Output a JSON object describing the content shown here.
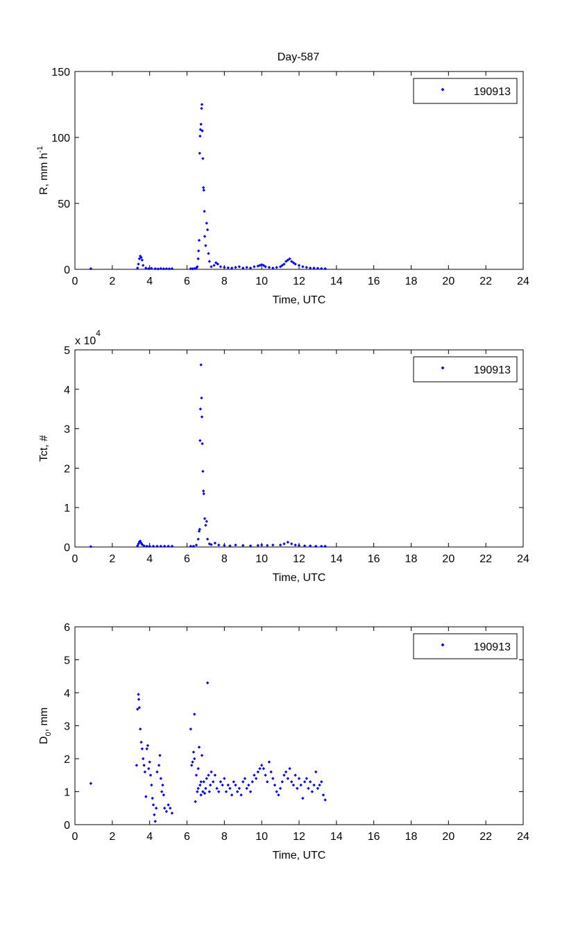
{
  "figure": {
    "title": "Day-587"
  },
  "chart_data": [
    {
      "type": "scatter",
      "xlabel": "Time, UTC",
      "ylabel": "R, mm h",
      "ylabel_sup": "-1",
      "xlim": [
        0,
        24
      ],
      "ylim": [
        0,
        150
      ],
      "xticks": [
        0,
        2,
        4,
        6,
        8,
        10,
        12,
        14,
        16,
        18,
        20,
        22,
        24
      ],
      "yticks": [
        0,
        50,
        100,
        150
      ],
      "legend": {
        "placement": "top-right",
        "label": "190913"
      },
      "grid": false,
      "color": "#0000ff",
      "series": [
        {
          "name": "190913",
          "x": [
            0.85,
            3.35,
            3.4,
            3.45,
            3.5,
            3.55,
            3.6,
            3.65,
            3.8,
            3.95,
            4.1,
            4.3,
            4.45,
            4.6,
            4.75,
            4.9,
            5.05,
            5.2,
            6.2,
            6.3,
            6.4,
            6.5,
            6.55,
            6.6,
            6.62,
            6.65,
            6.68,
            6.7,
            6.72,
            6.75,
            6.78,
            6.8,
            6.82,
            6.85,
            6.88,
            6.9,
            6.93,
            6.95,
            7.0,
            7.05,
            7.1,
            7.15,
            7.2,
            7.3,
            7.45,
            7.55,
            7.65,
            7.8,
            8.0,
            8.2,
            8.4,
            8.6,
            8.8,
            9.0,
            9.2,
            9.4,
            9.6,
            9.8,
            9.9,
            10.0,
            10.1,
            10.2,
            10.4,
            10.6,
            10.8,
            11.0,
            11.1,
            11.2,
            11.3,
            11.4,
            11.5,
            11.6,
            11.7,
            11.8,
            12.0,
            12.2,
            12.4,
            12.6,
            12.8,
            13.0,
            13.2,
            13.4
          ],
          "y": [
            0.5,
            1,
            4,
            8,
            10,
            9,
            7,
            3,
            1,
            0.5,
            0.8,
            0.5,
            0.3,
            0.6,
            0.4,
            0.5,
            0.4,
            0.5,
            0.5,
            0.4,
            0.6,
            1,
            2,
            8,
            14,
            22,
            88,
            101,
            106,
            110,
            122,
            125,
            105,
            84,
            62,
            60,
            44,
            25,
            18,
            35,
            30,
            12,
            6,
            2,
            3,
            5,
            4,
            2,
            1.5,
            1.2,
            1,
            1.5,
            2,
            1,
            1.5,
            1,
            2,
            2.5,
            3,
            3.5,
            3,
            2,
            1.5,
            1,
            1.5,
            2,
            3,
            4,
            6,
            7,
            8,
            6,
            5,
            4,
            3,
            2,
            1.5,
            1,
            1,
            0.8,
            0.6,
            0.5
          ]
        }
      ]
    },
    {
      "type": "scatter",
      "xlabel": "Time, UTC",
      "ylabel": "Tct, #",
      "y_multiplier": "x 10",
      "y_multiplier_exp": "4",
      "xlim": [
        0,
        24
      ],
      "ylim": [
        0,
        5
      ],
      "xticks": [
        0,
        2,
        4,
        6,
        8,
        10,
        12,
        14,
        16,
        18,
        20,
        22,
        24
      ],
      "yticks": [
        0,
        1,
        2,
        3,
        4,
        5
      ],
      "legend": {
        "placement": "top-right",
        "label": "190913"
      },
      "grid": false,
      "color": "#0000ff",
      "series": [
        {
          "name": "190913",
          "x": [
            0.85,
            3.35,
            3.4,
            3.45,
            3.5,
            3.55,
            3.6,
            3.7,
            3.85,
            4.0,
            4.2,
            4.4,
            4.6,
            4.8,
            5.0,
            5.2,
            6.2,
            6.35,
            6.5,
            6.6,
            6.65,
            6.68,
            6.7,
            6.72,
            6.75,
            6.78,
            6.8,
            6.82,
            6.85,
            6.88,
            6.9,
            6.95,
            7.0,
            7.05,
            7.1,
            7.2,
            7.3,
            7.5,
            7.7,
            8.0,
            8.3,
            8.6,
            9.0,
            9.4,
            9.8,
            10.0,
            10.3,
            10.6,
            11.0,
            11.2,
            11.4,
            11.6,
            11.8,
            12.0,
            12.3,
            12.6,
            12.9,
            13.2,
            13.4
          ],
          "y": [
            0.01,
            0.03,
            0.08,
            0.13,
            0.15,
            0.1,
            0.06,
            0.03,
            0.02,
            0.02,
            0.02,
            0.02,
            0.02,
            0.02,
            0.02,
            0.02,
            0.02,
            0.02,
            0.05,
            0.2,
            0.4,
            0.45,
            2.7,
            3.5,
            4.62,
            3.78,
            3.3,
            2.62,
            1.92,
            1.42,
            1.35,
            0.72,
            0.55,
            0.65,
            0.2,
            0.08,
            0.06,
            0.1,
            0.05,
            0.04,
            0.03,
            0.05,
            0.04,
            0.03,
            0.04,
            0.05,
            0.04,
            0.05,
            0.05,
            0.08,
            0.12,
            0.08,
            0.05,
            0.04,
            0.03,
            0.03,
            0.02,
            0.02,
            0.02
          ]
        }
      ]
    },
    {
      "type": "scatter",
      "xlabel": "Time, UTC",
      "ylabel": "D",
      "ylabel_sub": "0",
      "ylabel_suffix": ", mm",
      "xlim": [
        0,
        24
      ],
      "ylim": [
        0,
        6
      ],
      "xticks": [
        0,
        2,
        4,
        6,
        8,
        10,
        12,
        14,
        16,
        18,
        20,
        22,
        24
      ],
      "yticks": [
        0,
        1,
        2,
        3,
        4,
        5,
        6
      ],
      "legend": {
        "placement": "top-right",
        "label": "190913"
      },
      "grid": false,
      "color": "#0000ff",
      "series": [
        {
          "name": "190913",
          "x": [
            0.85,
            3.3,
            3.35,
            3.4,
            3.42,
            3.45,
            3.5,
            3.55,
            3.6,
            3.65,
            3.7,
            3.75,
            3.8,
            3.85,
            3.9,
            3.95,
            4.0,
            4.05,
            4.1,
            4.15,
            4.2,
            4.25,
            4.3,
            4.35,
            4.4,
            4.5,
            4.55,
            4.6,
            4.65,
            4.7,
            4.75,
            4.8,
            4.9,
            5.0,
            5.1,
            5.2,
            6.3,
            6.35,
            6.4,
            6.45,
            6.5,
            6.55,
            6.6,
            6.65,
            6.7,
            6.75,
            6.8,
            6.85,
            6.9,
            6.95,
            7.0,
            7.05,
            7.1,
            7.15,
            7.2,
            7.25,
            7.3,
            7.4,
            7.5,
            7.6,
            7.7,
            7.8,
            7.9,
            8.0,
            8.1,
            8.2,
            8.3,
            8.4,
            8.5,
            8.6,
            8.7,
            8.8,
            8.9,
            9.0,
            9.1,
            9.2,
            9.3,
            9.4,
            9.5,
            9.6,
            9.7,
            9.8,
            9.9,
            10.0,
            10.1,
            10.2,
            10.3,
            10.4,
            10.5,
            10.6,
            10.7,
            10.8,
            10.9,
            11.0,
            11.1,
            11.2,
            11.3,
            11.4,
            11.5,
            11.6,
            11.7,
            11.8,
            11.9,
            12.0,
            12.1,
            12.2,
            12.3,
            12.4,
            12.5,
            12.6,
            12.7,
            12.8,
            12.9,
            13.0,
            13.1,
            13.2,
            13.3,
            13.4,
            6.2,
            6.25,
            6.4,
            6.6,
            6.75
          ],
          "y": [
            1.25,
            1.8,
            3.5,
            3.95,
            3.8,
            3.55,
            2.9,
            2.5,
            2.3,
            2.0,
            1.8,
            1.6,
            0.85,
            2.3,
            2.4,
            1.7,
            1.9,
            1.5,
            1.2,
            0.8,
            0.6,
            0.3,
            0.1,
            0.5,
            1.6,
            1.8,
            2.1,
            1.4,
            1.0,
            1.2,
            0.9,
            0.5,
            0.4,
            0.6,
            0.5,
            0.35,
            1.9,
            2.2,
            3.35,
            0.7,
            1.5,
            1.0,
            1.7,
            2.35,
            1.2,
            0.9,
            2.1,
            1.0,
            1.3,
            0.95,
            1.1,
            1.4,
            4.3,
            1.5,
            1.0,
            1.2,
            1.6,
            1.3,
            1.5,
            1.1,
            1.0,
            1.3,
            1.2,
            1.4,
            1.0,
            1.2,
            1.1,
            0.9,
            1.3,
            1.2,
            1.0,
            1.1,
            0.9,
            1.3,
            1.4,
            1.1,
            1.2,
            1.0,
            1.3,
            1.5,
            1.4,
            1.6,
            1.7,
            1.8,
            1.7,
            1.5,
            1.3,
            1.9,
            1.6,
            1.4,
            1.2,
            1.0,
            0.9,
            1.1,
            1.3,
            1.5,
            1.6,
            1.4,
            1.7,
            1.3,
            1.2,
            1.5,
            1.1,
            1.4,
            1.2,
            0.8,
            1.3,
            1.4,
            1.1,
            1.3,
            1.0,
            1.2,
            1.6,
            1.1,
            1.2,
            1.3,
            0.9,
            0.75,
            2.9,
            1.8,
            2.0,
            1.1,
            1.3
          ]
        }
      ]
    }
  ]
}
